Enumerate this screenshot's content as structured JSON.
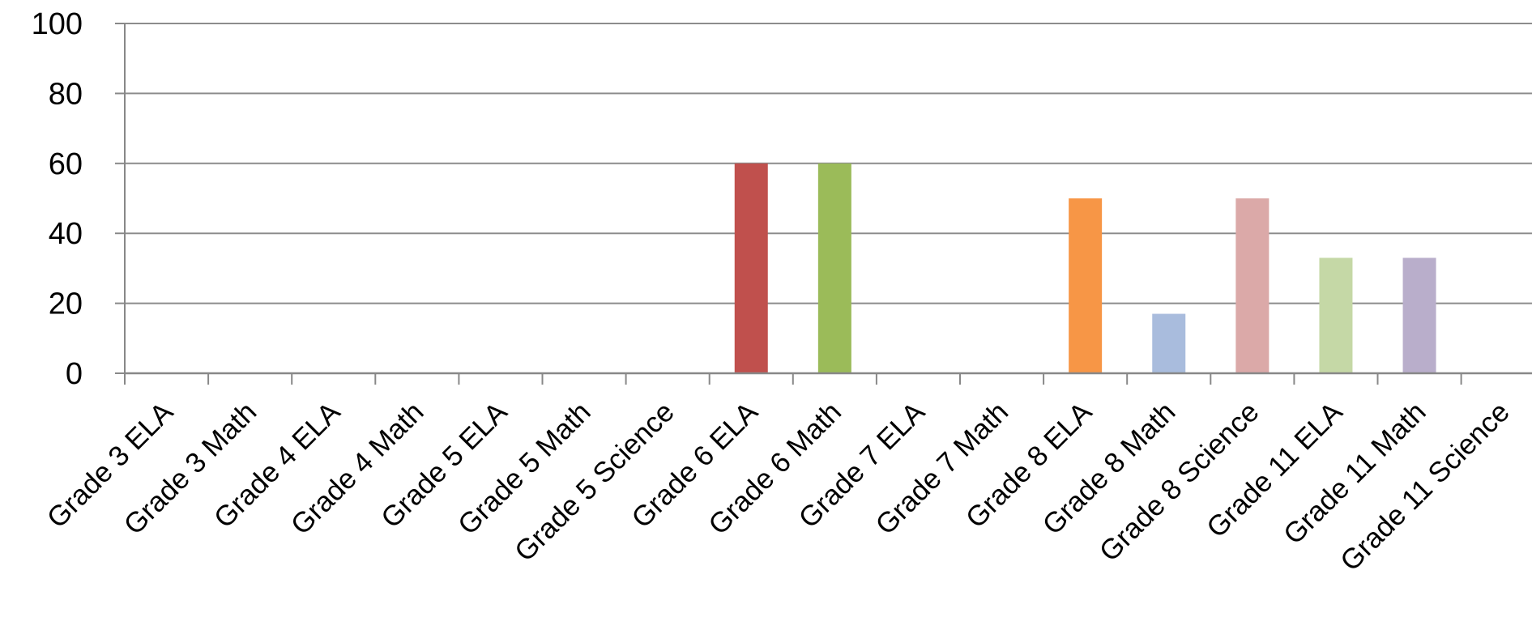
{
  "chart_data": {
    "type": "bar",
    "title": "",
    "xlabel": "",
    "ylabel": "",
    "ylim": [
      0,
      100
    ],
    "yticks": [
      0,
      20,
      40,
      60,
      80,
      100
    ],
    "ytick_labels": [
      "0",
      "20",
      "40",
      "60",
      "80",
      "100"
    ],
    "grid": true,
    "legend": "none",
    "categories": [
      "Grade 3 ELA",
      "Grade 3 Math",
      "Grade 4 ELA",
      "Grade 4 Math",
      "Grade 5 ELA",
      "Grade 5 Math",
      "Grade 5 Science",
      "Grade 6 ELA",
      "Grade 6 Math",
      "Grade 7 ELA",
      "Grade 7 Math",
      "Grade 8 ELA",
      "Grade 8 Math",
      "Grade 8 Science",
      "Grade 11 ELA",
      "Grade 11 Math",
      "Grade 11 Science"
    ],
    "values": [
      0,
      0,
      0,
      0,
      0,
      0,
      0,
      60,
      60,
      0,
      0,
      50,
      17,
      50,
      33,
      33,
      0
    ],
    "colors": [
      "#4f81bd",
      "#c0504d",
      "#9bbb59",
      "#8064a2",
      "#4bacc6",
      "#f79646",
      "#4f81bd",
      "#c0504d",
      "#9bbb59",
      "#8064a2",
      "#4bacc6",
      "#f79646",
      "#a9bcdd",
      "#dba9a8",
      "#c5d8a6",
      "#b9aecb",
      "#a8d5e3"
    ],
    "axis_color": "#888888",
    "grid_color": "#8c8c8c"
  }
}
